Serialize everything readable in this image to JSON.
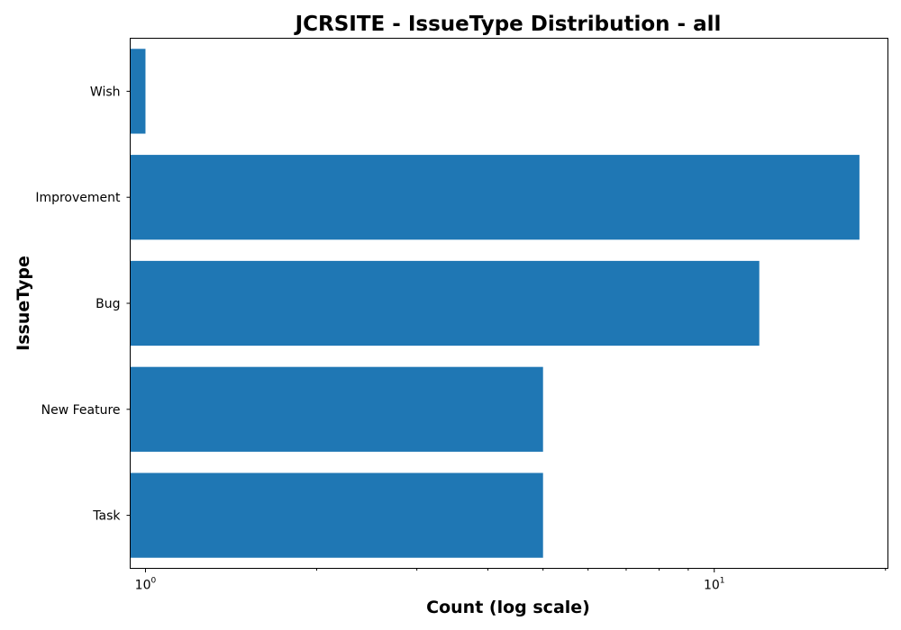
{
  "chart_data": {
    "type": "bar",
    "orientation": "horizontal",
    "title": "JCRSITE - IssueType Distribution - all",
    "xlabel": "Count (log scale)",
    "ylabel": "IssueType",
    "x_scale": "log",
    "xlim": [
      0.94,
      20.2
    ],
    "grid": false,
    "color": "#1f77b4",
    "categories": [
      "Wish",
      "Improvement",
      "Bug",
      "New Feature",
      "Task"
    ],
    "values": [
      1,
      18,
      12,
      5,
      5
    ],
    "x_ticks": [
      {
        "value": 1,
        "base": "10",
        "exp": "0"
      },
      {
        "value": 10,
        "base": "10",
        "exp": "1"
      }
    ]
  }
}
